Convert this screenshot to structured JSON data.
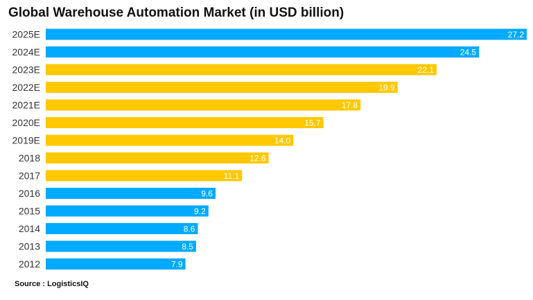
{
  "chart_data": {
    "type": "bar",
    "orientation": "horizontal",
    "title": "Global Warehouse Automation Market (in USD billion)",
    "source": "Source : LogisticsIQ",
    "xlim": [
      0,
      27.2
    ],
    "grid": false,
    "legend": "none",
    "categories": [
      "2025E",
      "2024E",
      "2023E",
      "2022E",
      "2021E",
      "2020E",
      "2019E",
      "2018",
      "2017",
      "2016",
      "2015",
      "2014",
      "2013",
      "2012"
    ],
    "values": [
      27.2,
      24.5,
      22.1,
      19.9,
      17.8,
      15.7,
      14.0,
      12.6,
      11.1,
      9.6,
      9.2,
      8.6,
      8.5,
      7.9
    ],
    "value_labels": [
      "27.2",
      "24.5",
      "22.1",
      "19.9",
      "17.8",
      "15.7",
      "14.0",
      "12.6",
      "11.1",
      "9.6",
      "9.2",
      "8.6",
      "8.5",
      "7.9"
    ],
    "bar_colors": [
      "#00aaff",
      "#00aaff",
      "#ffc800",
      "#ffc800",
      "#ffc800",
      "#ffc800",
      "#ffc800",
      "#ffc800",
      "#ffc800",
      "#00aaff",
      "#00aaff",
      "#00aaff",
      "#00aaff",
      "#00aaff"
    ]
  }
}
